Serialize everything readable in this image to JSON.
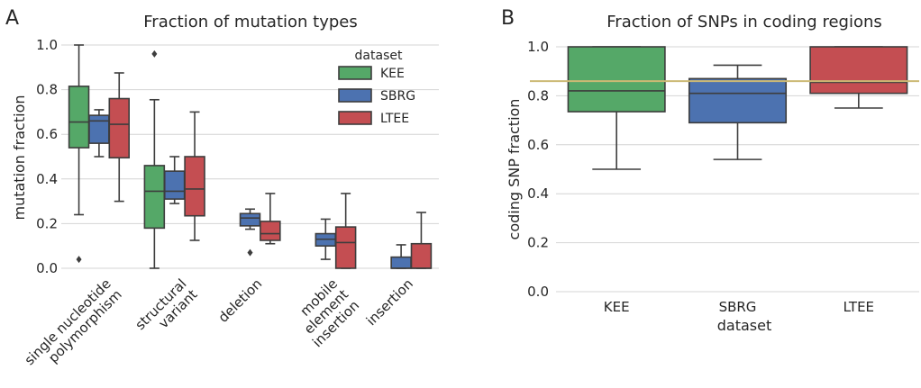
{
  "colors": {
    "KEE": "#55a868",
    "SBRG": "#4c72b0",
    "LTEE": "#c44e52",
    "reference_line": "#ccb974"
  },
  "chart_data": [
    {
      "panel": "A",
      "type": "box",
      "title": "Fraction of mutation types",
      "xlabel": "",
      "ylabel": "mutation fraction",
      "ylim": [
        0,
        1
      ],
      "yticks": [
        "0.0",
        "0.2",
        "0.4",
        "0.6",
        "0.8",
        "1.0"
      ],
      "grid": true,
      "legend": {
        "title": "dataset",
        "position": "top-right",
        "entries": [
          "KEE",
          "SBRG",
          "LTEE"
        ]
      },
      "categories": [
        "single nucleotide polymorphism",
        "structural variant",
        "deletion",
        "mobile element insertion",
        "insertion"
      ],
      "category_labels": [
        [
          "single nucleotide",
          "polymorphism"
        ],
        [
          "structural",
          "variant"
        ],
        [
          "deletion"
        ],
        [
          "mobile",
          "element",
          "insertion"
        ],
        [
          "insertion"
        ]
      ],
      "series": [
        {
          "name": "KEE",
          "boxes": [
            {
              "min": 0.24,
              "q1": 0.54,
              "median": 0.655,
              "q3": 0.815,
              "max": 1.0,
              "outliers": [
                0.04
              ]
            },
            {
              "min": 0.0,
              "q1": 0.18,
              "median": 0.345,
              "q3": 0.46,
              "max": 0.755,
              "outliers": [
                0.96
              ]
            },
            null,
            null,
            null
          ]
        },
        {
          "name": "SBRG",
          "boxes": [
            {
              "min": 0.5,
              "q1": 0.56,
              "median": 0.66,
              "q3": 0.685,
              "max": 0.71,
              "outliers": []
            },
            {
              "min": 0.29,
              "q1": 0.31,
              "median": 0.345,
              "q3": 0.435,
              "max": 0.5,
              "outliers": []
            },
            {
              "min": 0.175,
              "q1": 0.19,
              "median": 0.225,
              "q3": 0.245,
              "max": 0.265,
              "outliers": [
                0.07
              ]
            },
            {
              "min": 0.04,
              "q1": 0.1,
              "median": 0.13,
              "q3": 0.155,
              "max": 0.22,
              "outliers": []
            },
            {
              "min": 0.0,
              "q1": 0.0,
              "median": 0.0,
              "q3": 0.05,
              "max": 0.105,
              "outliers": []
            }
          ]
        },
        {
          "name": "LTEE",
          "boxes": [
            {
              "min": 0.3,
              "q1": 0.495,
              "median": 0.645,
              "q3": 0.76,
              "max": 0.875,
              "outliers": []
            },
            {
              "min": 0.125,
              "q1": 0.235,
              "median": 0.355,
              "q3": 0.5,
              "max": 0.7,
              "outliers": []
            },
            {
              "min": 0.11,
              "q1": 0.125,
              "median": 0.155,
              "q3": 0.21,
              "max": 0.335,
              "outliers": []
            },
            {
              "min": 0.0,
              "q1": 0.0,
              "median": 0.115,
              "q3": 0.185,
              "max": 0.335,
              "outliers": []
            },
            {
              "min": 0.0,
              "q1": 0.0,
              "median": 0.0,
              "q3": 0.11,
              "max": 0.25,
              "outliers": []
            }
          ]
        }
      ]
    },
    {
      "panel": "B",
      "type": "box",
      "title": "Fraction of SNPs in coding regions",
      "xlabel": "dataset",
      "ylabel": "coding SNP fraction",
      "ylim": [
        0,
        1
      ],
      "yticks": [
        "0.0",
        "0.2",
        "0.4",
        "0.6",
        "0.8",
        "1.0"
      ],
      "grid": true,
      "categories": [
        "KEE",
        "SBRG",
        "LTEE"
      ],
      "boxes": [
        {
          "name": "KEE",
          "min": 0.5,
          "q1": 0.735,
          "median": 0.82,
          "q3": 1.0,
          "max": 1.0
        },
        {
          "name": "SBRG",
          "min": 0.54,
          "q1": 0.69,
          "median": 0.81,
          "q3": 0.87,
          "max": 0.925
        },
        {
          "name": "LTEE",
          "min": 0.75,
          "q1": 0.81,
          "median": 0.855,
          "q3": 1.0,
          "max": 1.0
        }
      ],
      "reference_line": 0.86
    }
  ]
}
